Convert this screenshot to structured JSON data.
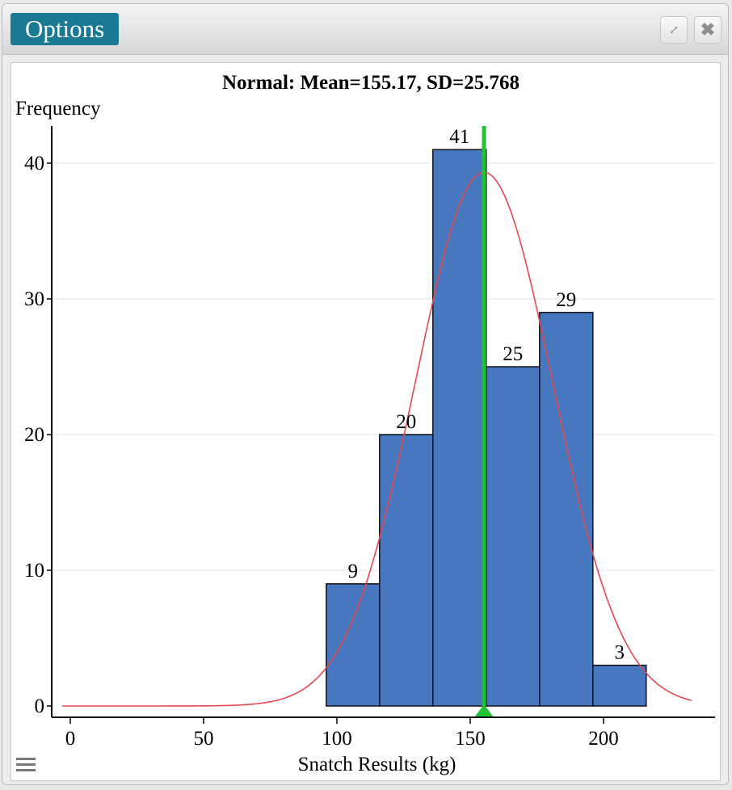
{
  "window": {
    "options_label": "Options",
    "expand_icon": "expand-icon",
    "close_icon": "close-icon",
    "menu_icon": "hamburger-menu-icon"
  },
  "chart_data": {
    "type": "bar",
    "title": "Normal: Mean=155.17, SD=25.768",
    "ylabel": "Frequency",
    "xlabel": "Snatch Results (kg)",
    "bins": [
      {
        "start": 96,
        "end": 116,
        "count": 9
      },
      {
        "start": 116,
        "end": 136,
        "count": 20
      },
      {
        "start": 136,
        "end": 156,
        "count": 41
      },
      {
        "start": 156,
        "end": 176,
        "count": 25
      },
      {
        "start": 176,
        "end": 196,
        "count": 29
      },
      {
        "start": 196,
        "end": 216,
        "count": 3
      }
    ],
    "xlim": [
      -3,
      240
    ],
    "ylim": [
      0,
      43
    ],
    "xticks": [
      0,
      50,
      100,
      150,
      200
    ],
    "yticks": [
      0,
      10,
      20,
      30,
      40
    ],
    "grid": "horizontal",
    "normal_curve": {
      "mean": 155.17,
      "sd": 25.768,
      "x_range": [
        -3,
        233
      ],
      "color": "#e5484d"
    },
    "mean_marker": {
      "value": 155.17,
      "color": "#22c332"
    },
    "bar_color": "#4677bf"
  }
}
